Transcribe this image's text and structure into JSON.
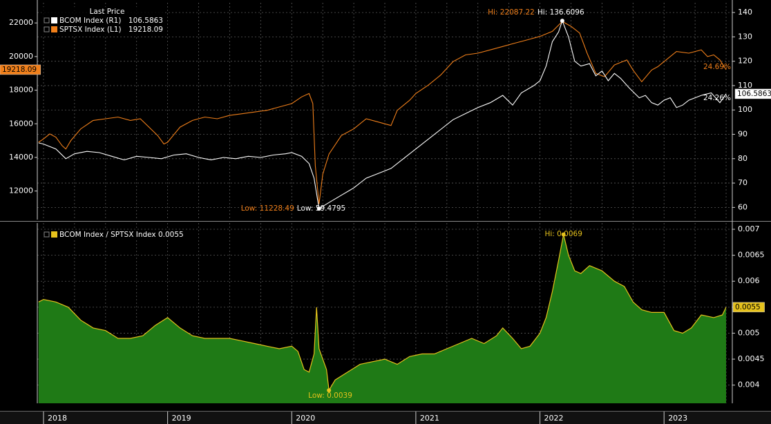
{
  "chart_data": [
    {
      "type": "line",
      "legend": {
        "header": "Last Price",
        "placement": "top-left",
        "items": [
          {
            "label": "BCOM Index  (R1)",
            "value": "106.5863",
            "color": "#ffffff"
          },
          {
            "label": "SPTSX Index  (L1)",
            "value": "19218.09",
            "color": "#f07f1a"
          }
        ]
      },
      "left_axis": {
        "ylim": [
          10300,
          23200
        ],
        "ticks": [
          12000,
          14000,
          16000,
          18000,
          20000,
          22000
        ],
        "tick_labels": [
          "12000",
          "14000",
          "16000",
          "18000",
          "20000",
          "22000"
        ]
      },
      "right_axis": {
        "ylim": [
          55,
          144
        ],
        "ticks": [
          60,
          70,
          80,
          90,
          100,
          110,
          120,
          130,
          140
        ],
        "tick_labels": [
          "60",
          "70",
          "80",
          "90",
          "100",
          "110",
          "120",
          "130",
          "140"
        ]
      },
      "x_range": [
        2017.95,
        2023.55
      ],
      "series": [
        {
          "name": "SPTSX Index",
          "axis": "left",
          "color": "#f07f1a",
          "last_label": "19218.09",
          "pct_label": "24.69%",
          "points": [
            [
              2017.96,
              14900
            ],
            [
              2018.0,
              15100
            ],
            [
              2018.05,
              15400
            ],
            [
              2018.1,
              15200
            ],
            [
              2018.15,
              14700
            ],
            [
              2018.18,
              14500
            ],
            [
              2018.22,
              15000
            ],
            [
              2018.3,
              15700
            ],
            [
              2018.4,
              16200
            ],
            [
              2018.5,
              16300
            ],
            [
              2018.6,
              16400
            ],
            [
              2018.7,
              16200
            ],
            [
              2018.78,
              16300
            ],
            [
              2018.85,
              15800
            ],
            [
              2018.92,
              15300
            ],
            [
              2018.97,
              14800
            ],
            [
              2019.0,
              14900
            ],
            [
              2019.1,
              15800
            ],
            [
              2019.2,
              16200
            ],
            [
              2019.3,
              16400
            ],
            [
              2019.4,
              16300
            ],
            [
              2019.5,
              16500
            ],
            [
              2019.6,
              16600
            ],
            [
              2019.7,
              16700
            ],
            [
              2019.8,
              16800
            ],
            [
              2019.9,
              17000
            ],
            [
              2020.0,
              17200
            ],
            [
              2020.08,
              17600
            ],
            [
              2020.14,
              17800
            ],
            [
              2020.17,
              17200
            ],
            [
              2020.19,
              13500
            ],
            [
              2020.22,
              11228
            ],
            [
              2020.25,
              13000
            ],
            [
              2020.3,
              14200
            ],
            [
              2020.4,
              15300
            ],
            [
              2020.5,
              15700
            ],
            [
              2020.6,
              16300
            ],
            [
              2020.7,
              16100
            ],
            [
              2020.75,
              16000
            ],
            [
              2020.8,
              15900
            ],
            [
              2020.85,
              16800
            ],
            [
              2020.95,
              17400
            ],
            [
              2021.0,
              17800
            ],
            [
              2021.1,
              18300
            ],
            [
              2021.2,
              18900
            ],
            [
              2021.3,
              19700
            ],
            [
              2021.4,
              20100
            ],
            [
              2021.5,
              20200
            ],
            [
              2021.6,
              20400
            ],
            [
              2021.7,
              20600
            ],
            [
              2021.8,
              20800
            ],
            [
              2021.9,
              21000
            ],
            [
              2022.0,
              21200
            ],
            [
              2022.1,
              21500
            ],
            [
              2022.18,
              22087
            ],
            [
              2022.25,
              21800
            ],
            [
              2022.32,
              21400
            ],
            [
              2022.38,
              20200
            ],
            [
              2022.45,
              19000
            ],
            [
              2022.52,
              18800
            ],
            [
              2022.6,
              19500
            ],
            [
              2022.7,
              19800
            ],
            [
              2022.75,
              19200
            ],
            [
              2022.82,
              18500
            ],
            [
              2022.9,
              19200
            ],
            [
              2022.95,
              19400
            ],
            [
              2023.0,
              19700
            ],
            [
              2023.1,
              20300
            ],
            [
              2023.2,
              20200
            ],
            [
              2023.3,
              20400
            ],
            [
              2023.35,
              20000
            ],
            [
              2023.4,
              20100
            ],
            [
              2023.45,
              19800
            ],
            [
              2023.5,
              19218
            ]
          ]
        },
        {
          "name": "BCOM Index",
          "axis": "right",
          "color": "#ffffff",
          "last_label": "106.5863",
          "pct_label": "24.26%",
          "points": [
            [
              2017.96,
              86.5
            ],
            [
              2018.0,
              86.0
            ],
            [
              2018.1,
              84.0
            ],
            [
              2018.18,
              80.0
            ],
            [
              2018.25,
              82.0
            ],
            [
              2018.35,
              83.0
            ],
            [
              2018.45,
              82.5
            ],
            [
              2018.55,
              81.0
            ],
            [
              2018.65,
              79.5
            ],
            [
              2018.75,
              81.0
            ],
            [
              2018.85,
              80.5
            ],
            [
              2018.95,
              80.0
            ],
            [
              2019.05,
              81.5
            ],
            [
              2019.15,
              82.0
            ],
            [
              2019.25,
              80.5
            ],
            [
              2019.35,
              79.5
            ],
            [
              2019.45,
              80.5
            ],
            [
              2019.55,
              80.0
            ],
            [
              2019.65,
              81.0
            ],
            [
              2019.75,
              80.5
            ],
            [
              2019.85,
              81.5
            ],
            [
              2019.95,
              82.0
            ],
            [
              2020.0,
              82.5
            ],
            [
              2020.08,
              81.0
            ],
            [
              2020.14,
              78.0
            ],
            [
              2020.18,
              72.0
            ],
            [
              2020.22,
              59.5
            ],
            [
              2020.3,
              62.0
            ],
            [
              2020.4,
              65.0
            ],
            [
              2020.5,
              68.0
            ],
            [
              2020.6,
              72.0
            ],
            [
              2020.7,
              74.0
            ],
            [
              2020.8,
              76.0
            ],
            [
              2020.9,
              80.0
            ],
            [
              2021.0,
              84.0
            ],
            [
              2021.1,
              88.0
            ],
            [
              2021.2,
              92.0
            ],
            [
              2021.3,
              96.0
            ],
            [
              2021.4,
              98.5
            ],
            [
              2021.5,
              101.0
            ],
            [
              2021.6,
              103.0
            ],
            [
              2021.7,
              106.0
            ],
            [
              2021.78,
              102.0
            ],
            [
              2021.85,
              107.0
            ],
            [
              2021.95,
              110.0
            ],
            [
              2022.0,
              112.0
            ],
            [
              2022.05,
              118.0
            ],
            [
              2022.1,
              128.0
            ],
            [
              2022.15,
              132.0
            ],
            [
              2022.18,
              136.6
            ],
            [
              2022.23,
              130.0
            ],
            [
              2022.28,
              120.0
            ],
            [
              2022.33,
              118.0
            ],
            [
              2022.4,
              119.0
            ],
            [
              2022.45,
              114.0
            ],
            [
              2022.5,
              116.0
            ],
            [
              2022.55,
              112.0
            ],
            [
              2022.6,
              115.0
            ],
            [
              2022.65,
              113.0
            ],
            [
              2022.72,
              109.0
            ],
            [
              2022.8,
              105.0
            ],
            [
              2022.85,
              106.0
            ],
            [
              2022.9,
              103.0
            ],
            [
              2022.95,
              102.0
            ],
            [
              2023.0,
              104.0
            ],
            [
              2023.05,
              105.0
            ],
            [
              2023.1,
              101.0
            ],
            [
              2023.15,
              102.0
            ],
            [
              2023.2,
              104.0
            ],
            [
              2023.3,
              106.0
            ],
            [
              2023.38,
              107.0
            ],
            [
              2023.45,
              103.0
            ],
            [
              2023.5,
              106.6
            ]
          ]
        }
      ],
      "annotations": [
        {
          "text": "Hi: 22087.22",
          "color": "#f07f1a"
        },
        {
          "text": "Hi: 136.6096",
          "color": "#ffffff"
        },
        {
          "text": "Low: 11228.49",
          "color": "#f07f1a"
        },
        {
          "text": "Low: 59.4795",
          "color": "#ffffff"
        }
      ],
      "grid": true
    },
    {
      "type": "area",
      "legend": {
        "placement": "top-left",
        "items": [
          {
            "label": "BCOM Index / SPTSX Index 0.0055",
            "color": "#e6c21c"
          }
        ]
      },
      "right_axis": {
        "ylim": [
          0.00365,
          0.00712
        ],
        "ticks": [
          0.004,
          0.0045,
          0.005,
          0.0055,
          0.006,
          0.0065,
          0.007
        ],
        "tick_labels": [
          "0.004",
          "0.0045",
          "0.005",
          "",
          "0.006",
          "0.0065",
          "0.007"
        ]
      },
      "x_range": [
        2017.95,
        2023.55
      ],
      "series": [
        {
          "name": "BCOM Index / SPTSX Index",
          "color": "#e6c21c",
          "fill": "#1f7a16",
          "last_label": "0.0055",
          "points": [
            [
              2017.96,
              0.0056
            ],
            [
              2018.0,
              0.00565
            ],
            [
              2018.1,
              0.0056
            ],
            [
              2018.2,
              0.0055
            ],
            [
              2018.3,
              0.00525
            ],
            [
              2018.4,
              0.0051
            ],
            [
              2018.5,
              0.00505
            ],
            [
              2018.6,
              0.0049
            ],
            [
              2018.7,
              0.0049
            ],
            [
              2018.8,
              0.00495
            ],
            [
              2018.9,
              0.00515
            ],
            [
              2019.0,
              0.0053
            ],
            [
              2019.1,
              0.0051
            ],
            [
              2019.2,
              0.00495
            ],
            [
              2019.3,
              0.0049
            ],
            [
              2019.4,
              0.0049
            ],
            [
              2019.5,
              0.0049
            ],
            [
              2019.6,
              0.00485
            ],
            [
              2019.7,
              0.0048
            ],
            [
              2019.8,
              0.00475
            ],
            [
              2019.9,
              0.0047
            ],
            [
              2020.0,
              0.00475
            ],
            [
              2020.05,
              0.00465
            ],
            [
              2020.1,
              0.0043
            ],
            [
              2020.14,
              0.00425
            ],
            [
              2020.18,
              0.0046
            ],
            [
              2020.2,
              0.0055
            ],
            [
              2020.22,
              0.0047
            ],
            [
              2020.25,
              0.0045
            ],
            [
              2020.28,
              0.0043
            ],
            [
              2020.3,
              0.0039
            ],
            [
              2020.35,
              0.0041
            ],
            [
              2020.45,
              0.00425
            ],
            [
              2020.55,
              0.0044
            ],
            [
              2020.65,
              0.00445
            ],
            [
              2020.75,
              0.0045
            ],
            [
              2020.85,
              0.0044
            ],
            [
              2020.95,
              0.00455
            ],
            [
              2021.05,
              0.0046
            ],
            [
              2021.15,
              0.0046
            ],
            [
              2021.25,
              0.0047
            ],
            [
              2021.35,
              0.0048
            ],
            [
              2021.45,
              0.0049
            ],
            [
              2021.55,
              0.0048
            ],
            [
              2021.65,
              0.00495
            ],
            [
              2021.7,
              0.0051
            ],
            [
              2021.78,
              0.0049
            ],
            [
              2021.85,
              0.0047
            ],
            [
              2021.92,
              0.00475
            ],
            [
              2022.0,
              0.005
            ],
            [
              2022.05,
              0.0053
            ],
            [
              2022.1,
              0.0058
            ],
            [
              2022.15,
              0.0064
            ],
            [
              2022.19,
              0.0069
            ],
            [
              2022.23,
              0.0065
            ],
            [
              2022.28,
              0.0062
            ],
            [
              2022.33,
              0.00615
            ],
            [
              2022.4,
              0.0063
            ],
            [
              2022.5,
              0.0062
            ],
            [
              2022.6,
              0.006
            ],
            [
              2022.68,
              0.0059
            ],
            [
              2022.75,
              0.0056
            ],
            [
              2022.82,
              0.00545
            ],
            [
              2022.9,
              0.0054
            ],
            [
              2023.0,
              0.0054
            ],
            [
              2023.08,
              0.00505
            ],
            [
              2023.15,
              0.005
            ],
            [
              2023.22,
              0.0051
            ],
            [
              2023.3,
              0.00535
            ],
            [
              2023.4,
              0.0053
            ],
            [
              2023.47,
              0.00535
            ],
            [
              2023.5,
              0.0055
            ]
          ]
        }
      ],
      "annotations": [
        {
          "text": "Hi: 0.0069",
          "color": "#e6c21c"
        },
        {
          "text": "Low: 0.0039",
          "color": "#e6c21c"
        }
      ],
      "grid": true
    }
  ],
  "x_axis": {
    "ticks": [
      2018,
      2019,
      2020,
      2021,
      2022,
      2023
    ],
    "tick_labels": [
      "2018",
      "2019",
      "2020",
      "2021",
      "2022",
      "2023"
    ]
  }
}
